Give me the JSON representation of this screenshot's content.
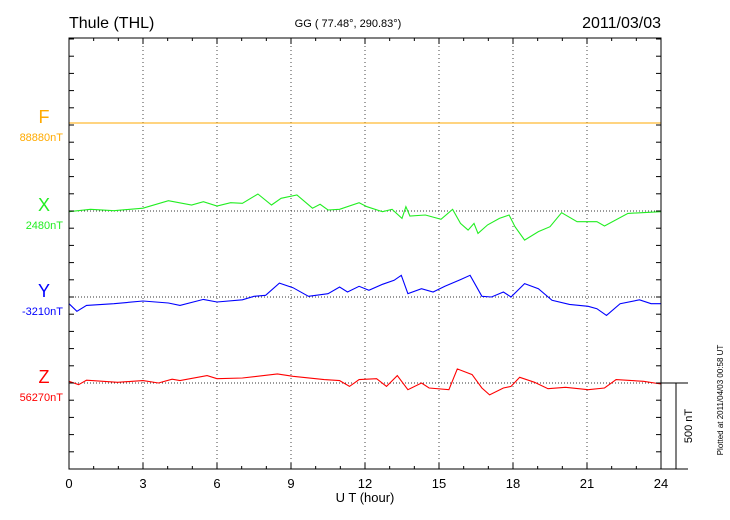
{
  "header": {
    "station": "Thule (THL)",
    "coords": "GG ( 77.48°, 290.83°)",
    "date": "2011/03/03"
  },
  "footer": {
    "scale_label": "500 nT",
    "plotted_at": "Plotted at 2011/04/03 00:58 UT"
  },
  "chart_data": {
    "type": "line",
    "title": "Thule (THL) 2011/03/03",
    "xlabel": "U T (hour)",
    "ylabel": "",
    "xlim": [
      0,
      24
    ],
    "x_ticks": [
      "0",
      "3",
      "6",
      "9",
      "12",
      "15",
      "18",
      "21",
      "24"
    ],
    "scale_bar_nT": 500,
    "y_minor_tick_nT": 100,
    "grid": true,
    "series": [
      {
        "name": "F",
        "baseline_label": "88880nT",
        "color": "#ffaa00",
        "x": [
          0,
          24
        ],
        "values": [
          0,
          0
        ]
      },
      {
        "name": "X",
        "baseline_label": "2480nT",
        "color": "#22ee22",
        "x": [
          0,
          0.87,
          1.82,
          3,
          4.03,
          4.97,
          5.45,
          6,
          6.55,
          7.03,
          7.66,
          8.21,
          8.6,
          9.24,
          9.87,
          10.18,
          10.5,
          10.97,
          11.76,
          12.08,
          12.71,
          13.1,
          13.5,
          13.66,
          13.82,
          14.45,
          15.08,
          15.55,
          15.87,
          16.18,
          16.42,
          16.58,
          16.97,
          17.45,
          17.84,
          18.08,
          18.47,
          19.03,
          19.5,
          19.97,
          20.6,
          21.4,
          21.71,
          22.66,
          24
        ],
        "values": [
          -4,
          10,
          2,
          16,
          60,
          35,
          54,
          29,
          48,
          45,
          99,
          35,
          74,
          93,
          16,
          39,
          6,
          10,
          48,
          25,
          -4,
          10,
          -43,
          25,
          -29,
          -23,
          -48,
          10,
          -72,
          -111,
          -72,
          -130,
          -81,
          -43,
          -23,
          -91,
          -169,
          -120,
          -91,
          -10,
          -62,
          -62,
          -87,
          -14,
          -4
        ]
      },
      {
        "name": "Y",
        "baseline_label": "-3210nT",
        "color": "#0000ff",
        "x": [
          0,
          0.32,
          0.71,
          1.82,
          3,
          4.03,
          4.5,
          5.45,
          6,
          7.03,
          7.5,
          7.97,
          8.53,
          9.08,
          9.71,
          10.5,
          10.97,
          11.29,
          11.76,
          12.16,
          12.71,
          13.18,
          13.47,
          13.74,
          14.29,
          14.76,
          15.24,
          15.87,
          16.26,
          16.74,
          17.13,
          17.61,
          17.92,
          18.47,
          19.03,
          19.58,
          20.29,
          21.05,
          21.4,
          21.79,
          22.34,
          23.13,
          23.6,
          24
        ],
        "values": [
          -39,
          -83,
          -49,
          -39,
          -23,
          -35,
          -49,
          -14,
          -29,
          -16,
          4,
          10,
          81,
          54,
          4,
          19,
          58,
          29,
          62,
          39,
          74,
          97,
          126,
          19,
          48,
          29,
          62,
          101,
          126,
          4,
          0,
          29,
          0,
          78,
          48,
          -19,
          -43,
          -54,
          -68,
          -107,
          -39,
          -16,
          -39,
          -39
        ]
      },
      {
        "name": "Z",
        "baseline_label": "56270nT",
        "color": "#ff0000",
        "x": [
          0,
          0.39,
          0.71,
          1.97,
          3,
          3.63,
          4.18,
          4.5,
          5.6,
          6,
          7.03,
          8.45,
          9.08,
          10.34,
          10.97,
          11.37,
          11.76,
          12.47,
          12.87,
          13.31,
          13.74,
          14.29,
          14.6,
          15.4,
          15.74,
          16.34,
          16.74,
          17.05,
          17.61,
          17.92,
          18.27,
          18.87,
          19.42,
          20.13,
          21.05,
          21.71,
          22.18,
          23.29,
          24
        ],
        "values": [
          10,
          -10,
          16,
          4,
          14,
          0,
          22,
          14,
          43,
          25,
          29,
          53,
          39,
          20,
          14,
          -20,
          20,
          25,
          -20,
          43,
          -39,
          0,
          -29,
          -39,
          82,
          49,
          -29,
          -69,
          -29,
          -20,
          33,
          4,
          -33,
          -25,
          -39,
          -29,
          20,
          10,
          -6
        ]
      }
    ]
  }
}
